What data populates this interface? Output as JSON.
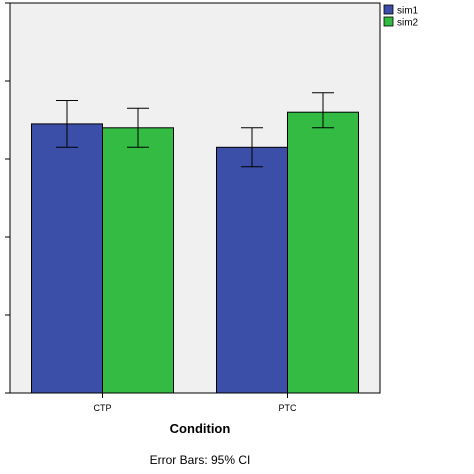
{
  "chart_data": {
    "type": "bar",
    "categories": [
      "CTP",
      "PTC"
    ],
    "series": [
      {
        "name": "sim1",
        "values": [
          0.69,
          0.63
        ],
        "ci_low": [
          0.63,
          0.58
        ],
        "ci_high": [
          0.75,
          0.68
        ],
        "color": "#3b4ea8"
      },
      {
        "name": "sim2",
        "values": [
          0.68,
          0.72
        ],
        "ci_low": [
          0.63,
          0.68
        ],
        "ci_high": [
          0.73,
          0.77
        ],
        "color": "#33bb44"
      }
    ],
    "ylim": [
      0,
      1
    ],
    "yticks": [
      0,
      0.2,
      0.4,
      0.6,
      0.8,
      1.0
    ],
    "xlabel": "Condition",
    "ylabel": "",
    "title": "",
    "legend_position": "top-right",
    "grid": false,
    "plot_background": "#f0f0f0",
    "note": "Error Bars: 95% CI"
  }
}
